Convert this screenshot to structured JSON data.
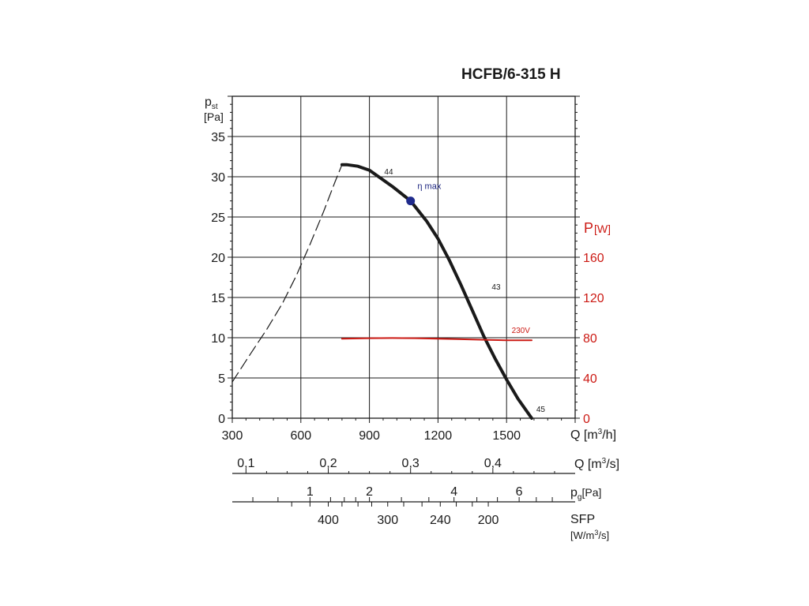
{
  "chart_data": {
    "type": "line",
    "title": "HCFB/6-315 H",
    "y_axis": {
      "label": "p",
      "label_sub": "st",
      "unit": "[Pa]",
      "ticks": [
        "0",
        "5",
        "10",
        "15",
        "20",
        "25",
        "30",
        "35"
      ],
      "tick_values": [
        0,
        5,
        10,
        15,
        20,
        25,
        30,
        35
      ],
      "ylim": [
        0,
        40
      ]
    },
    "y2_axis": {
      "label": "P",
      "unit": "[W]",
      "color": "#cc1a14",
      "ticks": [
        "0",
        "40",
        "80",
        "120",
        "160"
      ],
      "tick_values": [
        0,
        40,
        80,
        120,
        160
      ],
      "ylim": [
        0,
        320
      ]
    },
    "x_axis": {
      "label": "Q [m³/h]",
      "label_main": "Q [m",
      "label_sup": "3",
      "label_end": "/h]",
      "ticks": [
        "300",
        "600",
        "900",
        "1200",
        "1500"
      ],
      "tick_values": [
        300,
        600,
        900,
        1200,
        1500
      ],
      "xlim": [
        300,
        1800
      ]
    },
    "secondary_scales": [
      {
        "label": "Q [m³/s]",
        "label_main": "Q [m",
        "label_sup": "3",
        "label_end": "/s]",
        "ticks": [
          "0,1",
          "0,2",
          "0,3",
          "0,4"
        ],
        "q_m3h": [
          360,
          720,
          1080,
          1440
        ]
      },
      {
        "label": "pg[Pa]",
        "label_main": "p",
        "label_sub": "g",
        "label_end": "[Pa]",
        "ticks": [
          "1",
          "2",
          "4",
          "6"
        ],
        "q_m3h": [
          640,
          900,
          1270,
          1555
        ]
      },
      {
        "label": "SFP [W/m³/s]",
        "label_main": "SFP",
        "label_line2": "[W/m",
        "label_sup": "3",
        "label_end": "/s]",
        "ticks": [
          "400",
          "300",
          "240",
          "200"
        ],
        "q_m3h": [
          720,
          980,
          1210,
          1420
        ]
      }
    ],
    "series": [
      {
        "name": "pressure",
        "axis": "y",
        "color": "#1a1a1a",
        "style": "solid",
        "x": [
          780,
          800,
          850,
          900,
          950,
          1000,
          1080,
          1150,
          1200,
          1250,
          1300,
          1350,
          1400,
          1450,
          1500,
          1550,
          1610
        ],
        "y": [
          31.5,
          31.5,
          31.3,
          30.8,
          29.8,
          28.8,
          27.0,
          24.5,
          22.3,
          19.6,
          16.6,
          13.4,
          10.2,
          7.4,
          4.8,
          2.4,
          0
        ]
      },
      {
        "name": "pressure-unstable",
        "axis": "y",
        "color": "#1a1a1a",
        "style": "dashed",
        "x": [
          300,
          380,
          450,
          520,
          580,
          640,
          700,
          750,
          780
        ],
        "y": [
          4.5,
          8.0,
          11.0,
          14.3,
          17.7,
          21.6,
          25.7,
          29.4,
          31.5
        ]
      },
      {
        "name": "power",
        "axis": "y2",
        "color": "#cc1a14",
        "style": "solid",
        "x": [
          780,
          900,
          1000,
          1100,
          1200,
          1300,
          1400,
          1500,
          1610
        ],
        "y": [
          79,
          79.5,
          79.7,
          79.5,
          79,
          78.5,
          78,
          77.5,
          77.5
        ]
      }
    ],
    "annotations": [
      {
        "text": "44",
        "x": 965,
        "y": 30.3
      },
      {
        "text": "43",
        "x": 1435,
        "y": 16.0
      },
      {
        "text": "45",
        "x": 1630,
        "y": 0.8
      },
      {
        "text": "230V",
        "x": 1522,
        "y": 10.6,
        "color": "#cc1a14"
      },
      {
        "text": "η max",
        "x": 1110,
        "y": 28.5,
        "color": "#1a237e"
      }
    ],
    "points": [
      {
        "name": "eta-max",
        "x": 1080,
        "y": 27.0,
        "color": "#1f2a8c"
      }
    ],
    "grid": true,
    "legend": "none"
  }
}
